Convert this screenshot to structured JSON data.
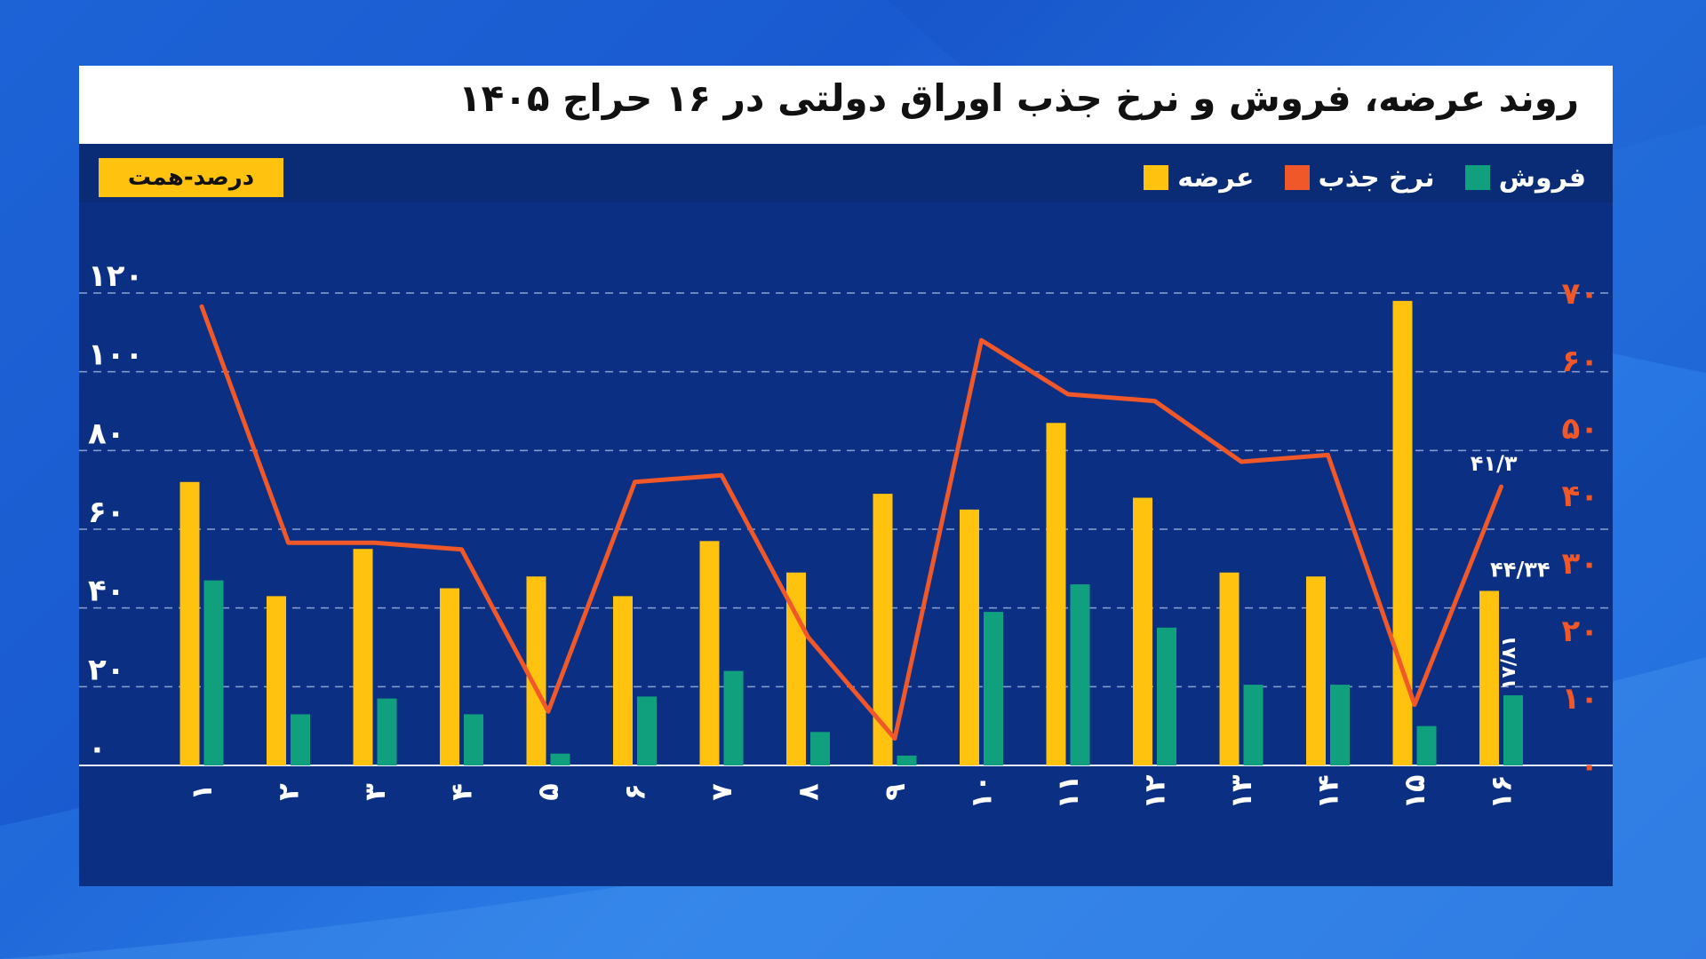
{
  "title": "روند عرضه، فروش و نرخ جذب اوراق دولتی در ۱۶ حراج ۱۴۰۵",
  "unit_label": "درصد-همت",
  "legend": [
    {
      "label": "عرضه",
      "color": "#ffc20e"
    },
    {
      "label": "نرخ جذب",
      "color": "#f0582a"
    },
    {
      "label": "فروش",
      "color": "#10a07e"
    }
  ],
  "chart_data": {
    "type": "bar",
    "categories": [
      "۱",
      "۲",
      "۳",
      "۴",
      "۵",
      "۶",
      "۷",
      "۸",
      "۹",
      "۱۰",
      "۱۱",
      "۱۲",
      "۱۳",
      "۱۴",
      "۱۵",
      "۱۶"
    ],
    "series": [
      {
        "name": "عرضه",
        "type": "bar",
        "axis": "left",
        "color": "#ffc20e",
        "values": [
          72,
          43,
          55,
          45,
          48,
          43,
          57,
          49,
          69,
          65,
          87,
          68,
          49,
          48,
          118,
          44.34
        ]
      },
      {
        "name": "فروش",
        "type": "bar",
        "axis": "left",
        "color": "#10a07e",
        "values": [
          47,
          13,
          17,
          13,
          3,
          17.5,
          24,
          8.5,
          2.5,
          39,
          46,
          35,
          20.5,
          20.5,
          10,
          17.81
        ]
      },
      {
        "name": "نرخ جذب",
        "type": "line",
        "axis": "right",
        "color": "#f0582a",
        "values": [
          68,
          33,
          33,
          32,
          8,
          42,
          43,
          19,
          4,
          63,
          55,
          54,
          45,
          46,
          9,
          41.3
        ]
      }
    ],
    "left_axis": {
      "min": 0,
      "max": 120,
      "ticks": [
        "۰",
        "۲۰",
        "۴۰",
        "۶۰",
        "۸۰",
        "۱۰۰",
        "۱۲۰"
      ]
    },
    "right_axis": {
      "min": 0,
      "max": 70,
      "ticks": [
        "۰",
        "۱۰",
        "۲۰",
        "۳۰",
        "۴۰",
        "۵۰",
        "۶۰",
        "۷۰"
      ]
    },
    "annotations": [
      {
        "text": "۴۱/۳",
        "series": "نرخ جذب",
        "index": 15
      },
      {
        "text": "۴۴/۳۴",
        "series": "عرضه",
        "index": 15
      },
      {
        "text": "۱۷/۸۱",
        "series": "فروش",
        "index": 15
      }
    ],
    "grid": true
  }
}
